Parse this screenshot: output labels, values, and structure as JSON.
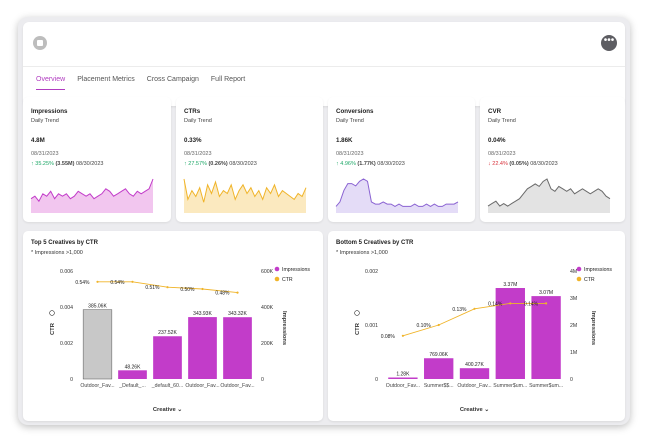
{
  "tabs": [
    {
      "label": "Overview",
      "active": true
    },
    {
      "label": "Placement Metrics",
      "active": false
    },
    {
      "label": "Cross Campaign",
      "active": false
    },
    {
      "label": "Full Report",
      "active": false
    }
  ],
  "header": {
    "more_icon": "more-horizontal-icon",
    "logo_icon": "app-logo-icon"
  },
  "kpis": [
    {
      "title": "Impressions",
      "subtitle": "Daily Trend",
      "value": "4.8M",
      "date": "08/31/2023",
      "direction": "up",
      "arrow": "↑",
      "pct": "35.25%",
      "abs": "(3.55M)",
      "compare_date": "08/30/2023",
      "color": "#c23cc9",
      "fill": "#f2c6ef",
      "trend": [
        5,
        6,
        4,
        7,
        6,
        8,
        5,
        7,
        6,
        7,
        5,
        6,
        8,
        7,
        6,
        7,
        5,
        6,
        7,
        9,
        8,
        6,
        7,
        8,
        9,
        7,
        6,
        8,
        7,
        8,
        9,
        13
      ]
    },
    {
      "title": "CTRs",
      "subtitle": "Daily Trend",
      "value": "0.33%",
      "date": "08/31/2023",
      "direction": "up",
      "arrow": "↑",
      "pct": "27.57%",
      "abs": "(0.26%)",
      "compare_date": "08/30/2023",
      "color": "#f0b429",
      "fill": "#fbe9bf",
      "trend": [
        11,
        4,
        7,
        5,
        8,
        3,
        9,
        6,
        10,
        5,
        7,
        6,
        9,
        4,
        7,
        9,
        6,
        8,
        5,
        7,
        4,
        8,
        6,
        9,
        5,
        7,
        6,
        5,
        4,
        6,
        5,
        8
      ]
    },
    {
      "title": "Conversions",
      "subtitle": "Daily Trend",
      "value": "1.86K",
      "date": "08/31/2023",
      "direction": "up",
      "arrow": "↑",
      "pct": "4.96%",
      "abs": "(1.77K)",
      "compare_date": "08/30/2023",
      "color": "#8a63d2",
      "fill": "#e4dcf7",
      "trend": [
        2,
        4,
        9,
        12,
        12,
        11,
        13,
        14,
        13,
        4,
        3,
        3,
        4,
        3,
        3,
        2,
        3,
        2,
        2,
        2,
        3,
        2,
        2,
        3,
        2,
        3,
        2,
        2,
        3,
        3,
        3,
        4
      ]
    },
    {
      "title": "CVR",
      "subtitle": "Daily Trend",
      "value": "0.04%",
      "date": "08/31/2023",
      "direction": "down",
      "arrow": "↓",
      "pct": "22.4%",
      "abs": "(0.05%)",
      "compare_date": "08/30/2023",
      "color": "#6b6b6b",
      "fill": "#e3e3e3",
      "trend": [
        2,
        3,
        4,
        2,
        3,
        2,
        3,
        4,
        5,
        7,
        9,
        10,
        11,
        10,
        12,
        13,
        9,
        8,
        10,
        9,
        8,
        9,
        7,
        8,
        9,
        8,
        7,
        8,
        9,
        8,
        6,
        5
      ]
    }
  ],
  "top_chart": {
    "title": "Top 5 Creatives by CTR",
    "note": "* Impressions >1,000",
    "chart_data": {
      "type": "bar",
      "categories": [
        "Outdoor_Fav...",
        "_Default_...",
        "_default_60...",
        "Outdoor_Fav...",
        "Outdoor_Fav..."
      ],
      "series": [
        {
          "name": "Impressions",
          "values": [
            385060,
            48260,
            237520,
            343930,
            343320
          ],
          "labels": [
            "385.06K",
            "48.26K",
            "237.52K",
            "343.93K",
            "343.32K"
          ],
          "colors": [
            "#c8c8c8",
            "#c23cc9",
            "#c23cc9",
            "#c23cc9",
            "#c23cc9"
          ]
        },
        {
          "name": "CTR",
          "values": [
            0.0054,
            0.0054,
            0.0051,
            0.005,
            0.0048
          ],
          "labels": [
            "0.54%",
            "0.54%",
            "0.51%",
            "0.50%",
            "0.48%"
          ]
        }
      ],
      "xlabel": "Creative",
      "ylabel_left": "CTR",
      "ylabel_right": "Impressions",
      "left_ticks": [
        "0",
        "0.002",
        "0.004",
        "0.006"
      ],
      "right_ticks": [
        "0",
        "200K",
        "400K",
        "600K"
      ],
      "ylim_left": [
        0,
        0.006
      ],
      "ylim_right": [
        0,
        600000
      ],
      "legend": "top-right",
      "bar_color": "#c23cc9",
      "line_color": "#f0b429"
    }
  },
  "bottom_chart": {
    "title": "Bottom 5 Creatives by CTR",
    "note": "* Impressions >1,000",
    "chart_data": {
      "type": "bar",
      "categories": [
        "Outdoor_Fav...",
        "Summer$$...",
        "Outdoor_Fav...",
        "Summer$um...",
        "Summer$um..."
      ],
      "series": [
        {
          "name": "Impressions",
          "values": [
            1280,
            769060,
            400270,
            3370000,
            3070000
          ],
          "labels": [
            "1.28K",
            "769.06K",
            "400.27K",
            "3.37M",
            "3.07M"
          ],
          "colors": [
            "#c23cc9",
            "#c23cc9",
            "#c23cc9",
            "#c23cc9",
            "#c23cc9"
          ]
        },
        {
          "name": "CTR",
          "values": [
            0.0008,
            0.001,
            0.0013,
            0.0014,
            0.0014
          ],
          "labels": [
            "0.08%",
            "0.10%",
            "0.13%",
            "0.14%",
            "0.14%"
          ]
        }
      ],
      "xlabel": "Creative",
      "ylabel_left": "CTR",
      "ylabel_right": "Impressions",
      "left_ticks": [
        "0",
        "0.001",
        "0.002"
      ],
      "right_ticks": [
        "0",
        "1M",
        "2M",
        "3M",
        "4M"
      ],
      "ylim_left": [
        0,
        0.002
      ],
      "ylim_right": [
        0,
        4000000
      ],
      "legend": "top-right",
      "bar_color": "#c23cc9",
      "line_color": "#f0b429"
    }
  }
}
